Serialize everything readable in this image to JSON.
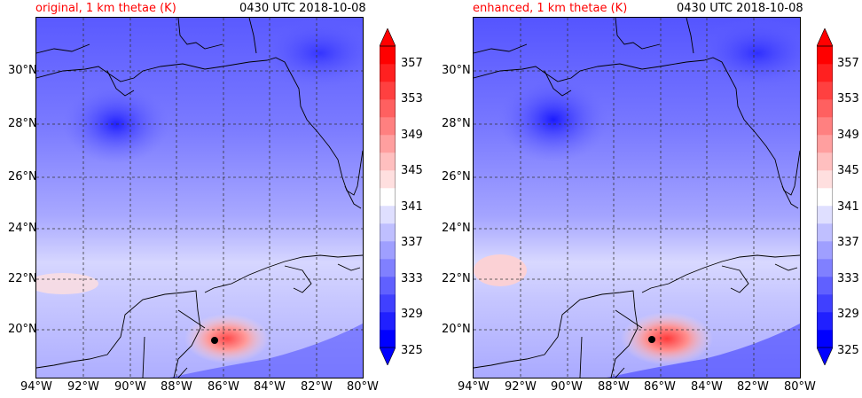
{
  "panels": [
    {
      "title": "original, 1 km thetae (K)",
      "time": "0430 UTC 2018-10-08"
    },
    {
      "title": "enhanced, 1 km thetae (K)",
      "time": "0430 UTC 2018-10-08"
    }
  ],
  "axes": {
    "lon_labels": [
      "94°W",
      "92°W",
      "90°W",
      "88°W",
      "86°W",
      "84°W",
      "82°W",
      "80°W"
    ],
    "lat_labels": [
      "20°N",
      "22°N",
      "24°N",
      "26°N",
      "28°N",
      "30°N"
    ]
  },
  "colorbar": {
    "labels": [
      "357",
      "353",
      "349",
      "345",
      "341",
      "337",
      "333",
      "329",
      "325"
    ],
    "min": 325,
    "max": 359,
    "step": 2,
    "extend": "both"
  },
  "colors": {
    "title_accent": "#ff0000",
    "low": "#0000ff",
    "mid": "#ffffff",
    "high": "#ff0000",
    "storm_marker": "#000000"
  }
}
